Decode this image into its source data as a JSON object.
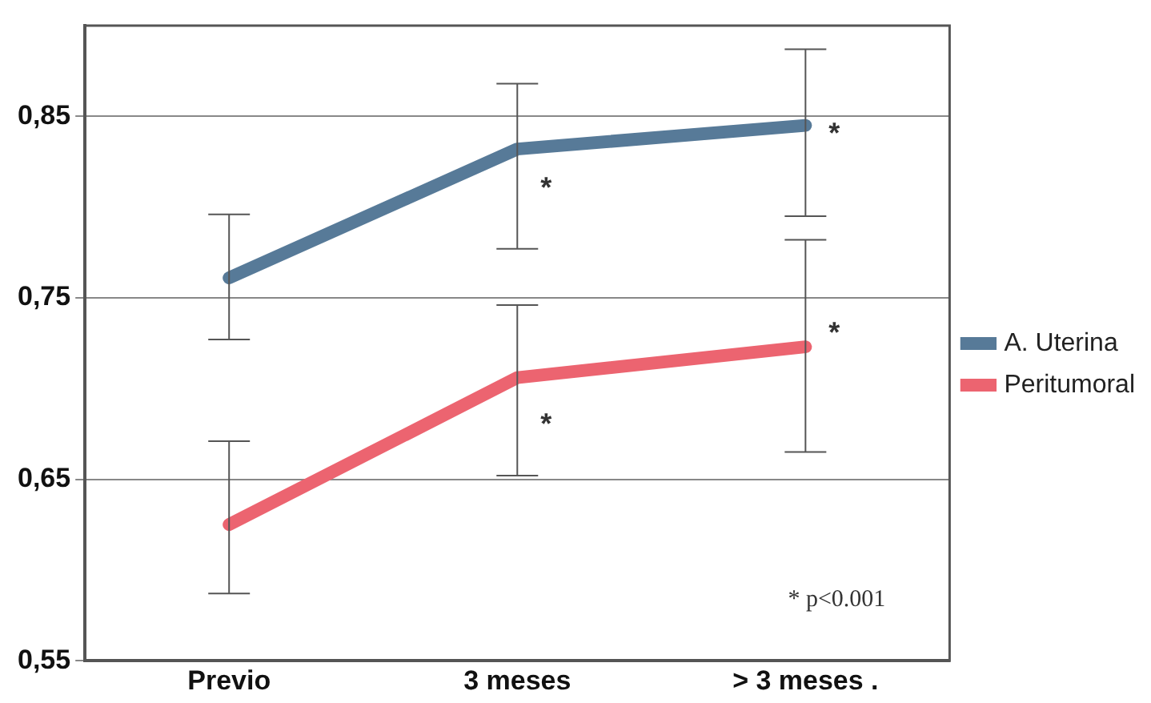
{
  "chart_data": {
    "type": "line",
    "categories": [
      "Previo",
      "3 meses",
      "> 3 meses ."
    ],
    "series": [
      {
        "name": "A. Uterina",
        "color": "#577a98",
        "values": [
          0.761,
          0.832,
          0.845
        ],
        "errors": [
          [
            0.727,
            0.796
          ],
          [
            0.777,
            0.868
          ],
          [
            0.795,
            0.887
          ]
        ]
      },
      {
        "name": "Peritumoral",
        "color": "#ec6470",
        "values": [
          0.625,
          0.706,
          0.723
        ],
        "errors": [
          [
            0.587,
            0.671
          ],
          [
            0.652,
            0.746
          ],
          [
            0.665,
            0.782
          ]
        ]
      }
    ],
    "ylim": [
      0.55,
      0.9
    ],
    "yticks": [
      {
        "value": 0.55,
        "label": "0,55"
      },
      {
        "value": 0.65,
        "label": "0,65"
      },
      {
        "value": 0.75,
        "label": "0,75"
      },
      {
        "value": 0.85,
        "label": "0,85"
      }
    ],
    "grid": "y",
    "legend": "right",
    "marker": "none",
    "line_style": "solid",
    "annotations": [
      {
        "text": "*",
        "x": "3 meses",
        "y": 0.81
      },
      {
        "text": "*",
        "x": "> 3 meses .",
        "y": 0.84
      },
      {
        "text": "*",
        "x": "3 meses",
        "y": 0.68
      },
      {
        "text": "*",
        "x": "> 3 meses .",
        "y": 0.73
      },
      "* p<0.001"
    ]
  }
}
